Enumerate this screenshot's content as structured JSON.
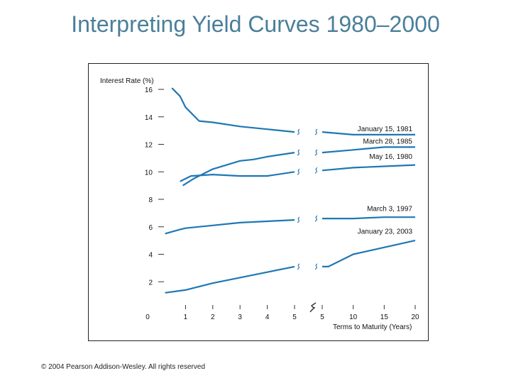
{
  "slide": {
    "title": "Interpreting Yield Curves 1980–2000",
    "copyright": "© 2004 Pearson Addison-Wesley. All rights reserved"
  },
  "colors": {
    "title": "#4a7f99",
    "series": "#1f77b4",
    "axis": "#333333"
  },
  "chart_data": {
    "type": "line",
    "title": "",
    "ylabel": "Interest Rate (%)",
    "xlabel": "Terms to Maturity (Years)",
    "ylim": [
      0,
      16
    ],
    "yticks": [
      2,
      4,
      6,
      8,
      10,
      12,
      14,
      16
    ],
    "origin_label": "0",
    "x_segments": [
      {
        "range": [
          0,
          5
        ],
        "ticks": [
          "1",
          "2",
          "3",
          "4",
          "5"
        ],
        "tick_values": [
          1,
          2,
          3,
          4,
          5
        ]
      },
      {
        "range": [
          5,
          20
        ],
        "ticks": [
          "5",
          "10",
          "15",
          "20"
        ],
        "tick_values": [
          5,
          10,
          15,
          20
        ]
      }
    ],
    "series": [
      {
        "name": "January 15, 1981",
        "short": [
          [
            0.5,
            16.1
          ],
          [
            0.8,
            15.5
          ],
          [
            1.0,
            14.7
          ],
          [
            1.5,
            13.7
          ],
          [
            2,
            13.6
          ],
          [
            3,
            13.3
          ],
          [
            4,
            13.1
          ],
          [
            5,
            12.9
          ]
        ],
        "long": [
          [
            5,
            12.9
          ],
          [
            10,
            12.7
          ],
          [
            15,
            12.7
          ],
          [
            20,
            12.7
          ]
        ]
      },
      {
        "name": "March 28, 1985",
        "short": [
          [
            0.9,
            9.0
          ],
          [
            1.3,
            9.5
          ],
          [
            2,
            10.2
          ],
          [
            3,
            10.8
          ],
          [
            3.5,
            10.9
          ],
          [
            4,
            11.1
          ],
          [
            5,
            11.4
          ]
        ],
        "long": [
          [
            5,
            11.4
          ],
          [
            10,
            11.6
          ],
          [
            15,
            11.8
          ],
          [
            20,
            11.8
          ]
        ]
      },
      {
        "name": "May 16, 1980",
        "short": [
          [
            0.8,
            9.3
          ],
          [
            1.2,
            9.7
          ],
          [
            2,
            9.8
          ],
          [
            3,
            9.7
          ],
          [
            4,
            9.7
          ],
          [
            5,
            10.0
          ]
        ],
        "long": [
          [
            5,
            10.1
          ],
          [
            10,
            10.3
          ],
          [
            15,
            10.4
          ],
          [
            20,
            10.5
          ]
        ]
      },
      {
        "name": "March 3, 1997",
        "short": [
          [
            0.25,
            5.5
          ],
          [
            0.8,
            5.8
          ],
          [
            1,
            5.9
          ],
          [
            2,
            6.1
          ],
          [
            3,
            6.3
          ],
          [
            4,
            6.4
          ],
          [
            5,
            6.5
          ]
        ],
        "long": [
          [
            5,
            6.6
          ],
          [
            10,
            6.6
          ],
          [
            15,
            6.7
          ],
          [
            20,
            6.7
          ]
        ]
      },
      {
        "name": "January 23, 2003",
        "short": [
          [
            0.25,
            1.2
          ],
          [
            1,
            1.4
          ],
          [
            2,
            1.9
          ],
          [
            3,
            2.3
          ],
          [
            4,
            2.7
          ],
          [
            5,
            3.1
          ]
        ],
        "long": [
          [
            5,
            3.1
          ],
          [
            6,
            3.1
          ],
          [
            10,
            4.0
          ],
          [
            15,
            4.5
          ],
          [
            20,
            5.0
          ]
        ]
      }
    ],
    "label_positions_in_data_units": [
      {
        "name": "January 15, 1981",
        "x": 20,
        "y": 12.95
      },
      {
        "name": "March 28, 1985",
        "x": 20,
        "y": 12.05
      },
      {
        "name": "May 16, 1980",
        "x": 20,
        "y": 10.95
      },
      {
        "name": "March 3, 1997",
        "x": 20,
        "y": 7.15
      },
      {
        "name": "January 23, 2003",
        "x": 20,
        "y": 5.5
      }
    ]
  }
}
